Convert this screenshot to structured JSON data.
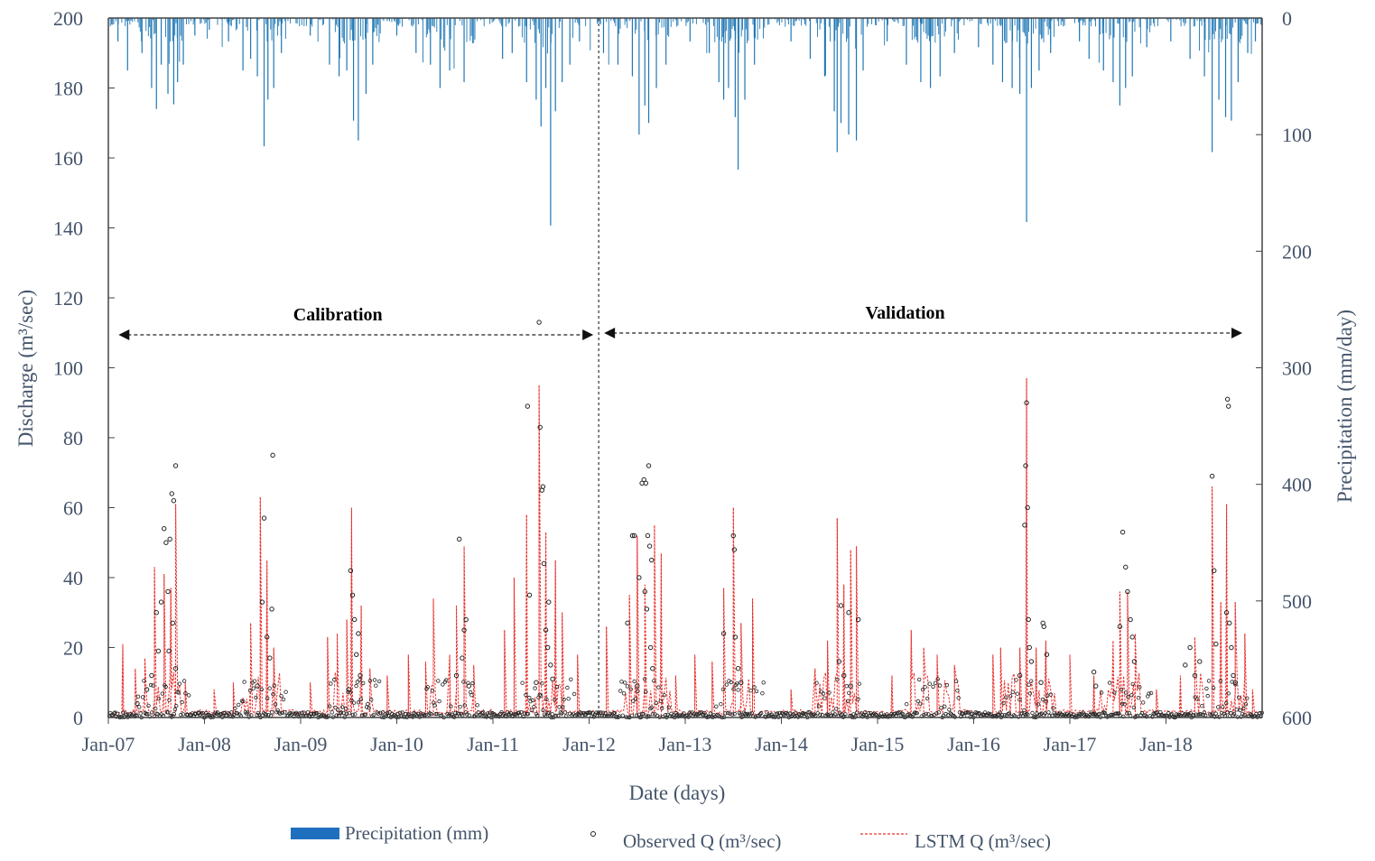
{
  "chart_data": {
    "type": "line",
    "title": "",
    "xlabel": "Date (days)",
    "ylabel_left": "Discharge (m³/sec)",
    "ylabel_right": "Precipitation (mm/day)",
    "ylim_left": [
      0,
      200
    ],
    "ylim_right_inverted": [
      0,
      600
    ],
    "yticks_left": [
      0,
      20,
      40,
      60,
      80,
      100,
      120,
      140,
      160,
      180,
      200
    ],
    "yticks_right": [
      0,
      100,
      200,
      300,
      400,
      500,
      600
    ],
    "x_range_years": [
      2007.0,
      2019.0
    ],
    "x_ticks": [
      {
        "label": "Jan-07",
        "t": 2007
      },
      {
        "label": "Jan-08",
        "t": 2008
      },
      {
        "label": "Jan-09",
        "t": 2009
      },
      {
        "label": "Jan-10",
        "t": 2010
      },
      {
        "label": "Jan-11",
        "t": 2011
      },
      {
        "label": "Jan-12",
        "t": 2012
      },
      {
        "label": "Jan-13",
        "t": 2013
      },
      {
        "label": "Jan-14",
        "t": 2014
      },
      {
        "label": "Jan-15",
        "t": 2015
      },
      {
        "label": "Jan-16",
        "t": 2016
      },
      {
        "label": "Jan-17",
        "t": 2017
      },
      {
        "label": "Jan-18",
        "t": 2018
      }
    ],
    "split_t": 2012.1,
    "periods": [
      {
        "label": "Calibration",
        "start_t": 2007.05,
        "end_t": 2012.1
      },
      {
        "label": "Validation",
        "start_t": 2012.1,
        "end_t": 2018.85
      }
    ],
    "colors": {
      "precip": "#1f77b4",
      "lstm": "#e8312f",
      "observed": "#222222",
      "axis_text": "#44546a"
    },
    "precip_bars": [
      {
        "t": 2007.1,
        "v": 20
      },
      {
        "t": 2007.2,
        "v": 45
      },
      {
        "t": 2007.35,
        "v": 30
      },
      {
        "t": 2007.45,
        "v": 60
      },
      {
        "t": 2007.5,
        "v": 78
      },
      {
        "t": 2007.55,
        "v": 40
      },
      {
        "t": 2007.62,
        "v": 65
      },
      {
        "t": 2007.68,
        "v": 74
      },
      {
        "t": 2007.72,
        "v": 55
      },
      {
        "t": 2007.78,
        "v": 40
      },
      {
        "t": 2007.9,
        "v": 15
      },
      {
        "t": 2008.05,
        "v": 10
      },
      {
        "t": 2008.25,
        "v": 20
      },
      {
        "t": 2008.4,
        "v": 45
      },
      {
        "t": 2008.48,
        "v": 35
      },
      {
        "t": 2008.55,
        "v": 50
      },
      {
        "t": 2008.62,
        "v": 110
      },
      {
        "t": 2008.66,
        "v": 70
      },
      {
        "t": 2008.72,
        "v": 60
      },
      {
        "t": 2008.8,
        "v": 30
      },
      {
        "t": 2009.1,
        "v": 15
      },
      {
        "t": 2009.3,
        "v": 40
      },
      {
        "t": 2009.4,
        "v": 50
      },
      {
        "t": 2009.48,
        "v": 45
      },
      {
        "t": 2009.55,
        "v": 88
      },
      {
        "t": 2009.6,
        "v": 105
      },
      {
        "t": 2009.68,
        "v": 65
      },
      {
        "t": 2009.75,
        "v": 40
      },
      {
        "t": 2010.0,
        "v": 15
      },
      {
        "t": 2010.2,
        "v": 30
      },
      {
        "t": 2010.35,
        "v": 40
      },
      {
        "t": 2010.45,
        "v": 60
      },
      {
        "t": 2010.55,
        "v": 45
      },
      {
        "t": 2010.7,
        "v": 55
      },
      {
        "t": 2011.1,
        "v": 35
      },
      {
        "t": 2011.2,
        "v": 30
      },
      {
        "t": 2011.35,
        "v": 55
      },
      {
        "t": 2011.45,
        "v": 70
      },
      {
        "t": 2011.5,
        "v": 93
      },
      {
        "t": 2011.55,
        "v": 60
      },
      {
        "t": 2011.6,
        "v": 178
      },
      {
        "t": 2011.65,
        "v": 80
      },
      {
        "t": 2011.72,
        "v": 55
      },
      {
        "t": 2011.8,
        "v": 40
      },
      {
        "t": 2011.9,
        "v": 20
      },
      {
        "t": 2012.15,
        "v": 30
      },
      {
        "t": 2012.3,
        "v": 40
      },
      {
        "t": 2012.45,
        "v": 50
      },
      {
        "t": 2012.52,
        "v": 100
      },
      {
        "t": 2012.58,
        "v": 75
      },
      {
        "t": 2012.62,
        "v": 90
      },
      {
        "t": 2012.7,
        "v": 60
      },
      {
        "t": 2012.8,
        "v": 40
      },
      {
        "t": 2013.05,
        "v": 20
      },
      {
        "t": 2013.25,
        "v": 30
      },
      {
        "t": 2013.35,
        "v": 55
      },
      {
        "t": 2013.4,
        "v": 70
      },
      {
        "t": 2013.45,
        "v": 60
      },
      {
        "t": 2013.52,
        "v": 85
      },
      {
        "t": 2013.55,
        "v": 130
      },
      {
        "t": 2013.62,
        "v": 70
      },
      {
        "t": 2013.72,
        "v": 40
      },
      {
        "t": 2014.1,
        "v": 20
      },
      {
        "t": 2014.3,
        "v": 35
      },
      {
        "t": 2014.45,
        "v": 50
      },
      {
        "t": 2014.55,
        "v": 80
      },
      {
        "t": 2014.58,
        "v": 115
      },
      {
        "t": 2014.62,
        "v": 90
      },
      {
        "t": 2014.7,
        "v": 100
      },
      {
        "t": 2014.78,
        "v": 105
      },
      {
        "t": 2014.85,
        "v": 45
      },
      {
        "t": 2015.1,
        "v": 20
      },
      {
        "t": 2015.3,
        "v": 40
      },
      {
        "t": 2015.45,
        "v": 55
      },
      {
        "t": 2015.55,
        "v": 60
      },
      {
        "t": 2015.65,
        "v": 50
      },
      {
        "t": 2015.8,
        "v": 30
      },
      {
        "t": 2016.05,
        "v": 25
      },
      {
        "t": 2016.2,
        "v": 40
      },
      {
        "t": 2016.3,
        "v": 55
      },
      {
        "t": 2016.4,
        "v": 60
      },
      {
        "t": 2016.48,
        "v": 65
      },
      {
        "t": 2016.55,
        "v": 175
      },
      {
        "t": 2016.6,
        "v": 60
      },
      {
        "t": 2016.68,
        "v": 45
      },
      {
        "t": 2016.8,
        "v": 30
      },
      {
        "t": 2017.1,
        "v": 20
      },
      {
        "t": 2017.2,
        "v": 35
      },
      {
        "t": 2017.35,
        "v": 45
      },
      {
        "t": 2017.45,
        "v": 55
      },
      {
        "t": 2017.52,
        "v": 75
      },
      {
        "t": 2017.58,
        "v": 60
      },
      {
        "t": 2017.65,
        "v": 50
      },
      {
        "t": 2017.8,
        "v": 25
      },
      {
        "t": 2018.05,
        "v": 20
      },
      {
        "t": 2018.25,
        "v": 35
      },
      {
        "t": 2018.4,
        "v": 50
      },
      {
        "t": 2018.48,
        "v": 115
      },
      {
        "t": 2018.55,
        "v": 70
      },
      {
        "t": 2018.62,
        "v": 85
      },
      {
        "t": 2018.68,
        "v": 88
      },
      {
        "t": 2018.75,
        "v": 55
      },
      {
        "t": 2018.85,
        "v": 30
      },
      {
        "t": 2018.93,
        "v": 20
      }
    ],
    "lstm_peaks": [
      {
        "t": 2007.15,
        "v": 21
      },
      {
        "t": 2007.28,
        "v": 14
      },
      {
        "t": 2007.38,
        "v": 17
      },
      {
        "t": 2007.48,
        "v": 43
      },
      {
        "t": 2007.58,
        "v": 41
      },
      {
        "t": 2007.65,
        "v": 37
      },
      {
        "t": 2007.7,
        "v": 61
      },
      {
        "t": 2007.8,
        "v": 10
      },
      {
        "t": 2008.1,
        "v": 8
      },
      {
        "t": 2008.3,
        "v": 10
      },
      {
        "t": 2008.48,
        "v": 27
      },
      {
        "t": 2008.58,
        "v": 63
      },
      {
        "t": 2008.65,
        "v": 45
      },
      {
        "t": 2008.72,
        "v": 20
      },
      {
        "t": 2009.1,
        "v": 10
      },
      {
        "t": 2009.28,
        "v": 23
      },
      {
        "t": 2009.38,
        "v": 24
      },
      {
        "t": 2009.48,
        "v": 28
      },
      {
        "t": 2009.53,
        "v": 60
      },
      {
        "t": 2009.63,
        "v": 32
      },
      {
        "t": 2009.72,
        "v": 14
      },
      {
        "t": 2009.9,
        "v": 12
      },
      {
        "t": 2010.12,
        "v": 18
      },
      {
        "t": 2010.3,
        "v": 16
      },
      {
        "t": 2010.38,
        "v": 34
      },
      {
        "t": 2010.55,
        "v": 18
      },
      {
        "t": 2010.62,
        "v": 32
      },
      {
        "t": 2010.7,
        "v": 49
      },
      {
        "t": 2010.8,
        "v": 15
      },
      {
        "t": 2011.12,
        "v": 25
      },
      {
        "t": 2011.22,
        "v": 40
      },
      {
        "t": 2011.35,
        "v": 58
      },
      {
        "t": 2011.48,
        "v": 95
      },
      {
        "t": 2011.55,
        "v": 53
      },
      {
        "t": 2011.65,
        "v": 45
      },
      {
        "t": 2011.72,
        "v": 30
      },
      {
        "t": 2011.88,
        "v": 18
      },
      {
        "t": 2012.18,
        "v": 26
      },
      {
        "t": 2012.42,
        "v": 35
      },
      {
        "t": 2012.5,
        "v": 52
      },
      {
        "t": 2012.58,
        "v": 38
      },
      {
        "t": 2012.68,
        "v": 55
      },
      {
        "t": 2012.75,
        "v": 47
      },
      {
        "t": 2012.9,
        "v": 12
      },
      {
        "t": 2013.1,
        "v": 18
      },
      {
        "t": 2013.28,
        "v": 16
      },
      {
        "t": 2013.4,
        "v": 37
      },
      {
        "t": 2013.5,
        "v": 60
      },
      {
        "t": 2013.58,
        "v": 27
      },
      {
        "t": 2013.7,
        "v": 34
      },
      {
        "t": 2014.1,
        "v": 8
      },
      {
        "t": 2014.35,
        "v": 14
      },
      {
        "t": 2014.48,
        "v": 22
      },
      {
        "t": 2014.58,
        "v": 57
      },
      {
        "t": 2014.65,
        "v": 38
      },
      {
        "t": 2014.72,
        "v": 48
      },
      {
        "t": 2014.78,
        "v": 49
      },
      {
        "t": 2015.15,
        "v": 12
      },
      {
        "t": 2015.35,
        "v": 25
      },
      {
        "t": 2015.48,
        "v": 20
      },
      {
        "t": 2015.62,
        "v": 18
      },
      {
        "t": 2015.8,
        "v": 15
      },
      {
        "t": 2016.2,
        "v": 18
      },
      {
        "t": 2016.28,
        "v": 20
      },
      {
        "t": 2016.48,
        "v": 20
      },
      {
        "t": 2016.55,
        "v": 97
      },
      {
        "t": 2016.65,
        "v": 20
      },
      {
        "t": 2016.75,
        "v": 22
      },
      {
        "t": 2017.0,
        "v": 18
      },
      {
        "t": 2017.25,
        "v": 12
      },
      {
        "t": 2017.45,
        "v": 22
      },
      {
        "t": 2017.52,
        "v": 36
      },
      {
        "t": 2017.6,
        "v": 36
      },
      {
        "t": 2017.68,
        "v": 24
      },
      {
        "t": 2017.9,
        "v": 8
      },
      {
        "t": 2018.15,
        "v": 12
      },
      {
        "t": 2018.3,
        "v": 23
      },
      {
        "t": 2018.48,
        "v": 66
      },
      {
        "t": 2018.57,
        "v": 33
      },
      {
        "t": 2018.63,
        "v": 61
      },
      {
        "t": 2018.72,
        "v": 33
      },
      {
        "t": 2018.82,
        "v": 24
      },
      {
        "t": 2018.9,
        "v": 8
      }
    ],
    "observed_points": [
      {
        "t": 2007.5,
        "v": 30
      },
      {
        "t": 2007.58,
        "v": 54
      },
      {
        "t": 2007.6,
        "v": 50
      },
      {
        "t": 2007.64,
        "v": 51
      },
      {
        "t": 2007.66,
        "v": 64
      },
      {
        "t": 2007.68,
        "v": 62
      },
      {
        "t": 2007.7,
        "v": 72
      },
      {
        "t": 2007.55,
        "v": 33
      },
      {
        "t": 2007.62,
        "v": 36
      },
      {
        "t": 2007.67,
        "v": 27
      },
      {
        "t": 2007.52,
        "v": 19
      },
      {
        "t": 2007.63,
        "v": 19
      },
      {
        "t": 2007.7,
        "v": 14
      },
      {
        "t": 2007.45,
        "v": 12
      },
      {
        "t": 2007.4,
        "v": 8
      },
      {
        "t": 2007.3,
        "v": 4
      },
      {
        "t": 2008.62,
        "v": 57
      },
      {
        "t": 2008.6,
        "v": 33
      },
      {
        "t": 2008.7,
        "v": 31
      },
      {
        "t": 2008.65,
        "v": 23
      },
      {
        "t": 2008.68,
        "v": 17
      },
      {
        "t": 2008.71,
        "v": 75
      },
      {
        "t": 2008.55,
        "v": 9
      },
      {
        "t": 2009.52,
        "v": 42
      },
      {
        "t": 2009.54,
        "v": 35
      },
      {
        "t": 2009.56,
        "v": 28
      },
      {
        "t": 2009.58,
        "v": 18
      },
      {
        "t": 2009.6,
        "v": 24
      },
      {
        "t": 2009.62,
        "v": 12
      },
      {
        "t": 2009.5,
        "v": 8
      },
      {
        "t": 2010.65,
        "v": 51
      },
      {
        "t": 2010.72,
        "v": 28
      },
      {
        "t": 2010.7,
        "v": 25
      },
      {
        "t": 2010.68,
        "v": 17
      },
      {
        "t": 2010.62,
        "v": 12
      },
      {
        "t": 2010.75,
        "v": 9
      },
      {
        "t": 2011.36,
        "v": 89
      },
      {
        "t": 2011.48,
        "v": 113
      },
      {
        "t": 2011.49,
        "v": 83
      },
      {
        "t": 2011.52,
        "v": 66
      },
      {
        "t": 2011.51,
        "v": 65
      },
      {
        "t": 2011.53,
        "v": 44
      },
      {
        "t": 2011.38,
        "v": 35
      },
      {
        "t": 2011.58,
        "v": 33
      },
      {
        "t": 2011.55,
        "v": 25
      },
      {
        "t": 2011.57,
        "v": 20
      },
      {
        "t": 2011.6,
        "v": 15
      },
      {
        "t": 2011.62,
        "v": 11
      },
      {
        "t": 2011.45,
        "v": 10
      },
      {
        "t": 2012.4,
        "v": 27
      },
      {
        "t": 2012.45,
        "v": 52
      },
      {
        "t": 2012.47,
        "v": 52
      },
      {
        "t": 2012.52,
        "v": 40
      },
      {
        "t": 2012.55,
        "v": 67
      },
      {
        "t": 2012.57,
        "v": 68
      },
      {
        "t": 2012.59,
        "v": 67
      },
      {
        "t": 2012.62,
        "v": 72
      },
      {
        "t": 2012.61,
        "v": 52
      },
      {
        "t": 2012.63,
        "v": 49
      },
      {
        "t": 2012.65,
        "v": 45
      },
      {
        "t": 2012.58,
        "v": 36
      },
      {
        "t": 2012.6,
        "v": 31
      },
      {
        "t": 2012.64,
        "v": 20
      },
      {
        "t": 2012.66,
        "v": 14
      },
      {
        "t": 2012.5,
        "v": 9
      },
      {
        "t": 2013.4,
        "v": 24
      },
      {
        "t": 2013.5,
        "v": 52
      },
      {
        "t": 2013.51,
        "v": 48
      },
      {
        "t": 2013.52,
        "v": 23
      },
      {
        "t": 2013.55,
        "v": 14
      },
      {
        "t": 2013.58,
        "v": 10
      },
      {
        "t": 2014.62,
        "v": 32
      },
      {
        "t": 2014.7,
        "v": 30
      },
      {
        "t": 2014.8,
        "v": 28
      },
      {
        "t": 2014.6,
        "v": 16
      },
      {
        "t": 2014.65,
        "v": 12
      },
      {
        "t": 2014.72,
        "v": 9
      },
      {
        "t": 2016.55,
        "v": 90
      },
      {
        "t": 2016.54,
        "v": 72
      },
      {
        "t": 2016.56,
        "v": 60
      },
      {
        "t": 2016.53,
        "v": 55
      },
      {
        "t": 2016.57,
        "v": 28
      },
      {
        "t": 2016.58,
        "v": 20
      },
      {
        "t": 2016.6,
        "v": 16
      },
      {
        "t": 2016.48,
        "v": 12
      },
      {
        "t": 2016.72,
        "v": 27
      },
      {
        "t": 2016.73,
        "v": 26
      },
      {
        "t": 2016.76,
        "v": 18
      },
      {
        "t": 2016.7,
        "v": 10
      },
      {
        "t": 2017.55,
        "v": 53
      },
      {
        "t": 2017.58,
        "v": 43
      },
      {
        "t": 2017.6,
        "v": 36
      },
      {
        "t": 2017.63,
        "v": 28
      },
      {
        "t": 2017.52,
        "v": 26
      },
      {
        "t": 2017.65,
        "v": 23
      },
      {
        "t": 2017.67,
        "v": 16
      },
      {
        "t": 2017.25,
        "v": 13
      },
      {
        "t": 2017.27,
        "v": 9
      },
      {
        "t": 2018.2,
        "v": 15
      },
      {
        "t": 2018.25,
        "v": 20
      },
      {
        "t": 2018.3,
        "v": 12
      },
      {
        "t": 2018.35,
        "v": 16
      },
      {
        "t": 2018.48,
        "v": 69
      },
      {
        "t": 2018.5,
        "v": 42
      },
      {
        "t": 2018.52,
        "v": 21
      },
      {
        "t": 2018.64,
        "v": 91
      },
      {
        "t": 2018.65,
        "v": 89
      },
      {
        "t": 2018.63,
        "v": 30
      },
      {
        "t": 2018.66,
        "v": 27
      },
      {
        "t": 2018.68,
        "v": 20
      },
      {
        "t": 2018.7,
        "v": 12
      },
      {
        "t": 2018.72,
        "v": 10
      }
    ],
    "legend": [
      {
        "key": "precip",
        "label": "Precipitation (mm)"
      },
      {
        "key": "observed",
        "label": "Observed Q (m³/sec)"
      },
      {
        "key": "lstm",
        "label": "LSTM Q (m³/sec)"
      }
    ]
  }
}
